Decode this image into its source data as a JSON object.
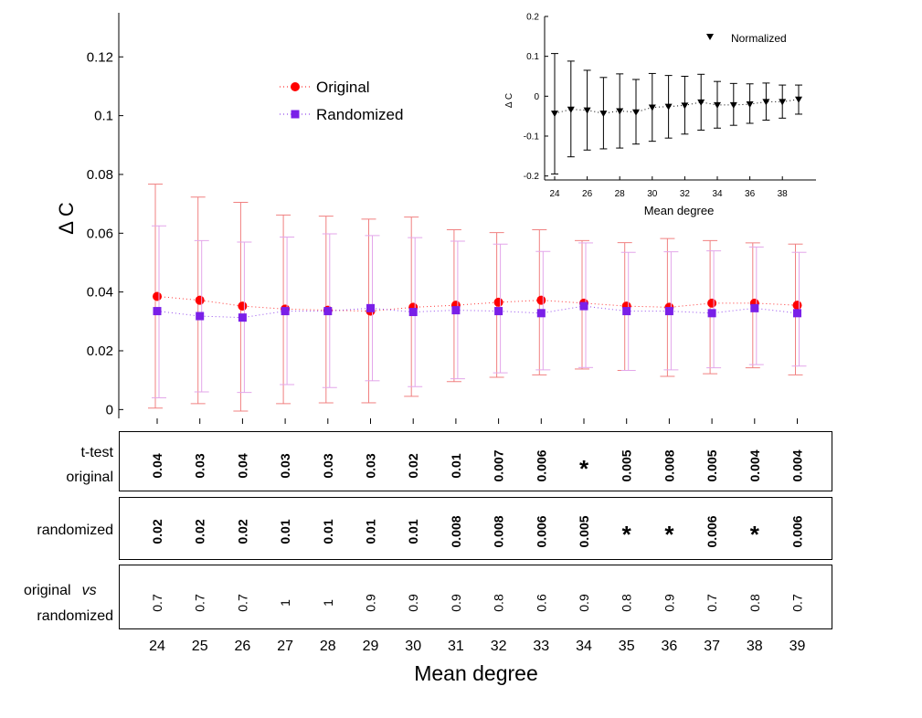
{
  "chart_data": {
    "type": "scatter",
    "main": {
      "ylabel": "Δ C",
      "xlabel": "Mean degree",
      "x": [
        24,
        25,
        26,
        27,
        28,
        29,
        30,
        31,
        32,
        33,
        34,
        35,
        36,
        37,
        38,
        39
      ],
      "ylim": [
        -0.003,
        0.135
      ],
      "yticks": [
        "0",
        "0.02",
        "0.04",
        "0.06",
        "0.08",
        "0.1",
        "0.12"
      ],
      "ytick_values": [
        0,
        0.02,
        0.04,
        0.06,
        0.08,
        0.1,
        0.12
      ],
      "series": [
        {
          "name": "Original",
          "color": "#ff0000",
          "error_color": "#f08080",
          "marker": "circle",
          "values": [
            0.0385,
            0.0372,
            0.0352,
            0.0342,
            0.0338,
            0.0335,
            0.0348,
            0.0355,
            0.0365,
            0.0372,
            0.0362,
            0.0352,
            0.0348,
            0.0362,
            0.0362,
            0.0355
          ],
          "err_low": [
            0.0005,
            0.002,
            -0.0005,
            0.002,
            0.0023,
            0.0023,
            0.0045,
            0.0095,
            0.011,
            0.0118,
            0.0138,
            0.0133,
            0.0113,
            0.0122,
            0.0142,
            0.0118
          ],
          "err_high": [
            0.0767,
            0.0723,
            0.0705,
            0.0662,
            0.0658,
            0.0648,
            0.0655,
            0.0612,
            0.0602,
            0.0612,
            0.0575,
            0.0568,
            0.0582,
            0.0575,
            0.0567,
            0.0563
          ]
        },
        {
          "name": "Randomized",
          "color": "#7a1fe8",
          "error_color": "#e3a6ea",
          "marker": "square",
          "values": [
            0.0335,
            0.0318,
            0.0313,
            0.0335,
            0.0335,
            0.0345,
            0.0332,
            0.0338,
            0.0335,
            0.0328,
            0.0352,
            0.0335,
            0.0335,
            0.0328,
            0.0345,
            0.0328
          ],
          "err_low": [
            0.004,
            0.006,
            0.0058,
            0.0085,
            0.0075,
            0.0098,
            0.0078,
            0.0105,
            0.0125,
            0.0135,
            0.0143,
            0.0133,
            0.0135,
            0.0142,
            0.0153,
            0.0148
          ],
          "err_high": [
            0.0625,
            0.0575,
            0.057,
            0.0587,
            0.0598,
            0.0592,
            0.0585,
            0.0573,
            0.0563,
            0.0538,
            0.0567,
            0.0535,
            0.0537,
            0.054,
            0.0553,
            0.0535
          ]
        }
      ]
    },
    "inset": {
      "legend": "Normalized",
      "ylabel": "Δ C",
      "xlabel": "Mean degree",
      "ylim": [
        -0.21,
        0.2
      ],
      "yticks": [
        "-0.2",
        "-0.1",
        "0",
        "0.1",
        "0.2"
      ],
      "ytick_values": [
        -0.2,
        -0.1,
        0,
        0.1,
        0.2
      ],
      "xticks": [
        "24",
        "26",
        "28",
        "30",
        "32",
        "34",
        "36",
        "38"
      ],
      "xtick_values": [
        24,
        26,
        28,
        30,
        32,
        34,
        36,
        38
      ],
      "x": [
        24,
        25,
        26,
        27,
        28,
        29,
        30,
        31,
        32,
        33,
        34,
        35,
        36,
        37,
        38,
        39
      ],
      "values": [
        -0.043,
        -0.033,
        -0.035,
        -0.043,
        -0.037,
        -0.04,
        -0.028,
        -0.026,
        -0.023,
        -0.015,
        -0.022,
        -0.022,
        -0.02,
        -0.014,
        -0.014,
        -0.008
      ],
      "err_low": [
        -0.195,
        -0.152,
        -0.135,
        -0.132,
        -0.13,
        -0.12,
        -0.113,
        -0.105,
        -0.095,
        -0.085,
        -0.08,
        -0.073,
        -0.068,
        -0.06,
        -0.055,
        -0.045
      ],
      "err_high": [
        0.107,
        0.088,
        0.065,
        0.047,
        0.056,
        0.042,
        0.057,
        0.052,
        0.05,
        0.055,
        0.037,
        0.032,
        0.031,
        0.033,
        0.028,
        0.028
      ]
    },
    "tables": {
      "ttest_label_line1": "t-test",
      "ttest_label_line2": "original",
      "ttest_original": [
        "0.04",
        "0.03",
        "0.04",
        "0.03",
        "0.03",
        "0.03",
        "0.02",
        "0.01",
        "0.007",
        "0.006",
        "*",
        "0.005",
        "0.008",
        "0.005",
        "0.004",
        "0.004"
      ],
      "randomized_label": "randomized",
      "ttest_randomized": [
        "0.02",
        "0.02",
        "0.02",
        "0.01",
        "0.01",
        "0.01",
        "0.01",
        "0.008",
        "0.008",
        "0.006",
        "0.005",
        "*",
        "*",
        "0.006",
        "*",
        "0.006"
      ],
      "compare_label_1": "original",
      "compare_label_vs": "vs",
      "compare_label_2": "randomized",
      "original_vs_randomized": [
        "0.7",
        "0.7",
        "0.7",
        "1",
        "1",
        "0.9",
        "0.9",
        "0.9",
        "0.8",
        "0.6",
        "0.9",
        "0.8",
        "0.9",
        "0.7",
        "0.8",
        "0.7"
      ]
    }
  }
}
